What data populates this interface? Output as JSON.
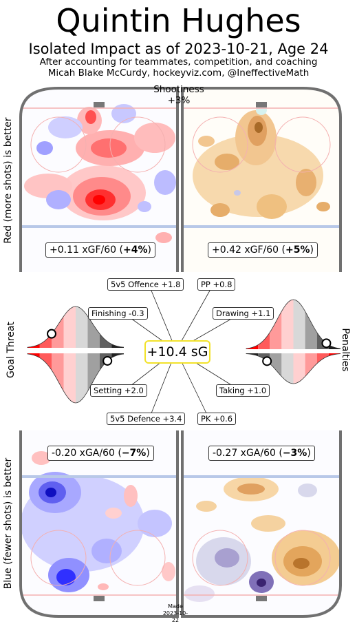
{
  "title": "Quintin Hughes",
  "subtitle": "Isolated Impact as of 2023-10-21, Age 24",
  "note_line1": "After accounting for teammates, competition, and coaching",
  "note_line2": "Micah Blake McCurdy, hockeyviz.com, @IneffectiveMath",
  "shootiness_label": "Shootiness",
  "shootiness_value": "+3%",
  "left_label_top": "Red (more shots) is better",
  "left_label_bottom": "Blue (fewer shots) is better",
  "goal_threat_label": "Goal Threat",
  "penalties_label": "Penalties",
  "made_label": "Made",
  "made_date": "2023-10-22",
  "colors": {
    "red": "#ff0000",
    "blue": "#0000ff",
    "orange": "#d98a1c",
    "purple": "#3a2370",
    "highlight": "#f2e22a"
  },
  "chart_data": {
    "type": "heatmap",
    "player": "Quintin Hughes",
    "total": {
      "label": "+10.4 sG",
      "value": 10.4
    },
    "shootiness": 3,
    "panels": [
      {
        "id": "offence_shots",
        "text_value": "+0.11 xGF/60 (",
        "text_bold": "+4%",
        "xg_per60": 0.11,
        "pct": 4
      },
      {
        "id": "offence_goals",
        "text_value": "+0.42 xGF/60 (",
        "text_bold": "+5%",
        "xg_per60": 0.42,
        "pct": 5
      },
      {
        "id": "defence_shots",
        "text_value": "-0.20 xGA/60 (",
        "text_bold": "−7%",
        "xg_per60": -0.2,
        "pct": -7
      },
      {
        "id": "defence_goals",
        "text_value": "-0.27 xGA/60 (",
        "text_bold": "−3%",
        "xg_per60": -0.27,
        "pct": -3
      }
    ],
    "components": [
      {
        "name": "5v5 Offence",
        "label": "5v5 Offence +1.8",
        "value": 1.8
      },
      {
        "name": "PP",
        "label": "PP +0.8",
        "value": 0.8
      },
      {
        "name": "Finishing",
        "label": "Finishing -0.3",
        "value": -0.3
      },
      {
        "name": "Drawing",
        "label": "Drawing +1.1",
        "value": 1.1
      },
      {
        "name": "Setting",
        "label": "Setting +2.0",
        "value": 2.0
      },
      {
        "name": "Taking",
        "label": "Taking +1.0",
        "value": 1.0
      },
      {
        "name": "5v5 Defence",
        "label": "5v5 Defence +3.4",
        "value": 3.4
      },
      {
        "name": "PK",
        "label": "PK +0.6",
        "value": 0.6
      }
    ],
    "distributions": [
      {
        "id": "finishing",
        "percentile": 0.25
      },
      {
        "id": "setting",
        "percentile": 0.83
      },
      {
        "id": "drawing",
        "percentile": 0.85
      },
      {
        "id": "taking",
        "percentile": 0.22
      }
    ]
  }
}
